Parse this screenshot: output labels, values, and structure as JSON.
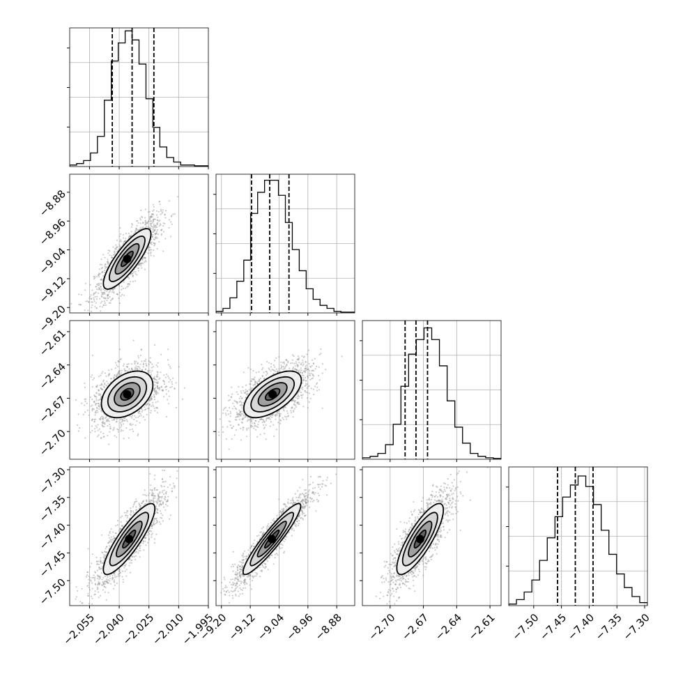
{
  "chart_data": {
    "type": "scatter",
    "plot_kind": "corner",
    "grid": true,
    "params": [
      {
        "range": [
          -2.065,
          -1.995
        ],
        "ticks": [
          "−2.055",
          "−2.040",
          "−2.025",
          "−2.010",
          "−1.995"
        ],
        "tick_values": [
          -2.055,
          -2.04,
          -2.025,
          -2.01,
          -1.995
        ],
        "quantiles": [
          -2.0435,
          -2.0335,
          -2.0225
        ],
        "hist": [
          1,
          2,
          4,
          9,
          20,
          44,
          70,
          82,
          90,
          84,
          68,
          45,
          26,
          13,
          6,
          3,
          1,
          1,
          0.5,
          0.5
        ],
        "hist_ylim": [
          0,
          92
        ]
      },
      {
        "range": [
          -9.215,
          -8.83
        ],
        "ticks": [
          "−9.20",
          "−9.12",
          "−9.04",
          "−8.96",
          "−8.88"
        ],
        "tick_values": [
          -9.2,
          -9.12,
          -9.04,
          -8.96,
          -8.88
        ],
        "quantiles": [
          -9.1165,
          -9.066,
          -9.0125
        ],
        "hist": [
          1,
          3,
          10,
          21,
          35,
          66,
          80,
          88,
          88,
          78,
          60,
          42,
          28,
          16,
          9,
          5,
          3,
          1,
          0.5,
          0.5
        ],
        "hist_ylim": [
          0,
          92
        ]
      },
      {
        "range": [
          -2.725,
          -2.6
        ],
        "ticks": [
          "−2.70",
          "−2.67",
          "−2.64",
          "−2.61"
        ],
        "tick_values": [
          -2.7,
          -2.67,
          -2.64,
          -2.61
        ],
        "quantiles": [
          -2.6865,
          -2.6767,
          -2.6663
        ],
        "hist": [
          1,
          2,
          4,
          10,
          24,
          50,
          72,
          82,
          90,
          82,
          64,
          40,
          22,
          11,
          4,
          2,
          1,
          0.5
        ],
        "hist_ylim": [
          0,
          95
        ]
      },
      {
        "range": [
          -7.545,
          -7.295
        ],
        "ticks": [
          "−7.50",
          "−7.45",
          "−7.40",
          "−7.35",
          "−7.30"
        ],
        "tick_values": [
          -7.5,
          -7.45,
          -7.4,
          -7.35,
          -7.3
        ],
        "quantiles": [
          -7.457,
          -7.425,
          -7.393
        ],
        "hist": [
          1,
          4,
          9,
          17,
          30,
          45,
          59,
          72,
          80,
          86,
          79,
          67,
          50,
          34,
          21,
          12,
          6,
          2
        ],
        "hist_ylim": [
          0,
          92
        ]
      }
    ],
    "pairs": [
      {
        "i": 0,
        "j": 1,
        "center": [
          -2.036,
          -9.065
        ],
        "sd": [
          0.006,
          0.042
        ],
        "corr": 0.82,
        "orient": 1
      },
      {
        "i": 0,
        "j": 2,
        "center": [
          -2.036,
          -2.6665
        ],
        "sd": [
          0.0065,
          0.0105
        ],
        "corr": 0.4,
        "orient": 1
      },
      {
        "i": 1,
        "j": 2,
        "center": [
          -9.058,
          -2.6665
        ],
        "sd": [
          0.04,
          0.0105
        ],
        "corr": 0.6,
        "orient": 1
      },
      {
        "i": 0,
        "j": 3,
        "center": [
          -2.035,
          -7.425
        ],
        "sd": [
          0.0065,
          0.032
        ],
        "corr": 0.86,
        "orient": 1
      },
      {
        "i": 1,
        "j": 3,
        "center": [
          -9.06,
          -7.425
        ],
        "sd": [
          0.04,
          0.032
        ],
        "corr": 0.93,
        "orient": 1
      },
      {
        "i": 2,
        "j": 3,
        "center": [
          -2.673,
          -7.425
        ],
        "sd": [
          0.0105,
          0.032
        ],
        "corr": 0.82,
        "orient": 1
      }
    ],
    "contour_sigmas": [
      0.5,
      1.0,
      1.5,
      2.0
    ]
  }
}
